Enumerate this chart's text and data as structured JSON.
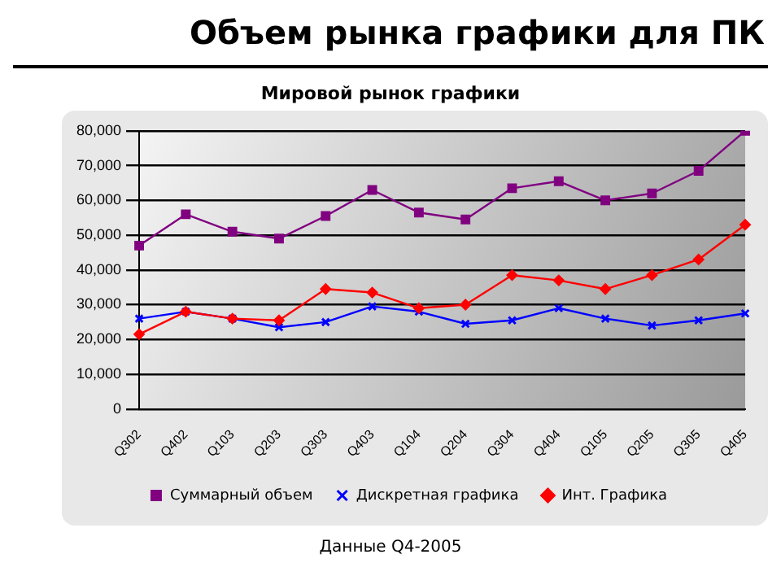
{
  "chart_data": {
    "type": "line",
    "title": "Объем рынка графики для ПК",
    "subtitle": "Мировой рынок графики",
    "categories": [
      "Q302",
      "Q402",
      "Q103",
      "Q203",
      "Q303",
      "Q403",
      "Q104",
      "Q204",
      "Q304",
      "Q404",
      "Q105",
      "Q205",
      "Q305",
      "Q405"
    ],
    "series": [
      {
        "name": "Суммарный объем",
        "color": "#800080",
        "marker": "square",
        "values": [
          47000,
          56000,
          51000,
          49000,
          55500,
          63000,
          56500,
          54500,
          63500,
          65500,
          60000,
          62000,
          68500,
          80000
        ]
      },
      {
        "name": "Дискретная графика",
        "color": "#0000ff",
        "marker": "cross",
        "values": [
          26000,
          28000,
          26000,
          23500,
          25000,
          29500,
          28000,
          24500,
          25500,
          29000,
          26000,
          24000,
          25500,
          27500
        ]
      },
      {
        "name": "Инт. Графика",
        "color": "#ff0000",
        "marker": "diamond",
        "values": [
          21500,
          28000,
          26000,
          25500,
          34500,
          33500,
          29000,
          30000,
          38500,
          37000,
          34500,
          38500,
          43000,
          53000
        ]
      }
    ],
    "ylim": [
      0,
      80000
    ],
    "yticks": [
      {
        "value": 0,
        "label": "0"
      },
      {
        "value": 10000,
        "label": "10,000"
      },
      {
        "value": 20000,
        "label": "20,000"
      },
      {
        "value": 30000,
        "label": "30,000"
      },
      {
        "value": 40000,
        "label": "40,000"
      },
      {
        "value": 50000,
        "label": "50,000"
      },
      {
        "value": 60000,
        "label": "60,000"
      },
      {
        "value": 70000,
        "label": "70,000"
      },
      {
        "value": 80000,
        "label": "80,000"
      }
    ],
    "grid": "y",
    "legend": "bottom",
    "line_style": "solid",
    "annotations": [
      "Данные Q4-2005"
    ]
  }
}
